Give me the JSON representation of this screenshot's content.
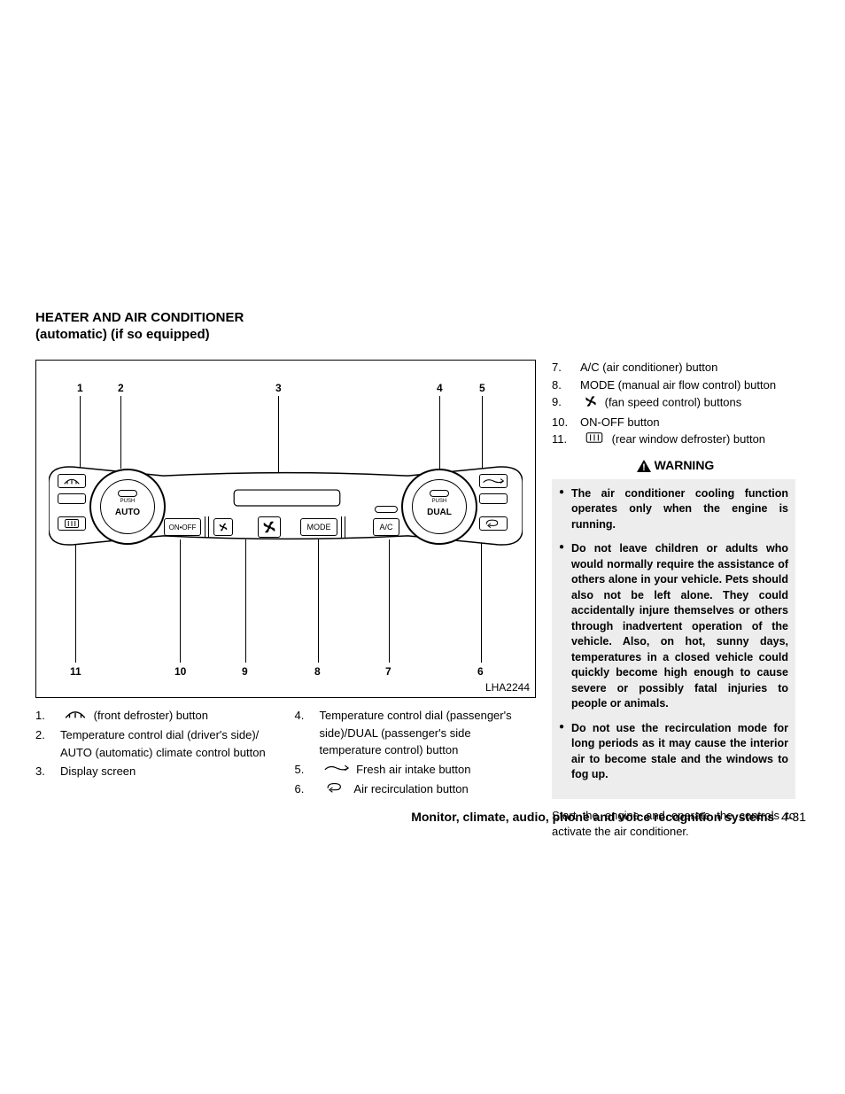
{
  "title": "HEATER AND AIR CONDITIONER",
  "subtitle": "(automatic) (if so equipped)",
  "diagram": {
    "code": "LHA2244",
    "top_callouts": [
      "1",
      "2",
      "3",
      "4",
      "5"
    ],
    "bottom_callouts": [
      "11",
      "10",
      "9",
      "8",
      "7",
      "6"
    ],
    "dial_left_push": "PUSH",
    "dial_left_label": "AUTO",
    "dial_right_push": "PUSH",
    "dial_right_label": "DUAL",
    "btn_onoff": "ON•OFF",
    "btn_mode": "MODE",
    "btn_ac": "A/C"
  },
  "legend_left": [
    {
      "n": "1.",
      "t": "(front defroster) button",
      "icon": "defrost-front"
    },
    {
      "n": "2.",
      "t": "Temperature control dial (driver's side)/ AUTO (automatic) climate control button"
    },
    {
      "n": "3.",
      "t": "Display screen"
    }
  ],
  "legend_mid": [
    {
      "n": "4.",
      "t": "Temperature control dial (passenger's side)/DUAL (passenger's side temperature control) button"
    },
    {
      "n": "5.",
      "t": "Fresh air intake button",
      "icon": "fresh-air"
    },
    {
      "n": "6.",
      "t": "Air recirculation button",
      "icon": "recirc"
    }
  ],
  "legend_right": [
    {
      "n": "7.",
      "t": "A/C (air conditioner) button"
    },
    {
      "n": "8.",
      "t": "MODE (manual air flow control) button"
    },
    {
      "n": "9.",
      "t": "(fan speed control) buttons",
      "icon": "fan"
    },
    {
      "n": "10.",
      "t": "ON-OFF button"
    },
    {
      "n": "11.",
      "t": "(rear window defroster) button",
      "icon": "defrost-rear"
    }
  ],
  "warning_label": "WARNING",
  "warnings": [
    "The air conditioner cooling function operates only when the engine is running.",
    "Do not leave children or adults who would normally require the assistance of others alone in your vehicle. Pets should also not be left alone. They could accidentally injure themselves or others through inadvertent operation of the vehicle. Also, on hot, sunny days, temperatures in a closed vehicle could quickly become high enough to cause severe or possibly fatal injuries to people or animals.",
    "Do not use the recirculation mode for long periods as it may cause the interior air to become stale and the windows to fog up."
  ],
  "after_warning": "Start the engine and operate the controls to activate the air conditioner.",
  "footer_section": "Monitor, climate, audio, phone and voice recognition systems",
  "footer_page": "4-31"
}
